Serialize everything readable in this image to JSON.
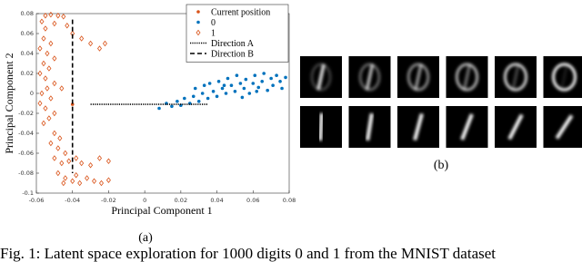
{
  "chart_data": {
    "type": "scatter",
    "xlabel": "Principal Component 1",
    "ylabel": "Principal Component 2",
    "xlim": [
      -0.06,
      0.08
    ],
    "ylim": [
      -0.1,
      0.08
    ],
    "xticks": [
      -0.06,
      -0.04,
      -0.02,
      0,
      0.02,
      0.04,
      0.06,
      0.08
    ],
    "yticks": [
      -0.1,
      -0.08,
      -0.06,
      -0.04,
      -0.02,
      0,
      0.02,
      0.04,
      0.06,
      0.08
    ],
    "legend": "upper right",
    "series": [
      {
        "name": "Current position",
        "color": "#d95319",
        "marker": "dot",
        "x": [
          -0.04
        ],
        "values": [
          -0.011
        ]
      },
      {
        "name": "0",
        "color": "#0072bd",
        "marker": "dot",
        "x": [
          0.008,
          0.012,
          0.015,
          0.018,
          0.02,
          0.022,
          0.025,
          0.027,
          0.028,
          0.03,
          0.032,
          0.033,
          0.035,
          0.036,
          0.038,
          0.04,
          0.041,
          0.043,
          0.045,
          0.046,
          0.048,
          0.05,
          0.051,
          0.053,
          0.055,
          0.056,
          0.058,
          0.06,
          0.061,
          0.063,
          0.065,
          0.066,
          0.068,
          0.07,
          0.071,
          0.073,
          0.075,
          0.076,
          0.078,
          0.062,
          0.054,
          0.044
        ],
        "values": [
          -0.015,
          -0.01,
          -0.013,
          -0.008,
          -0.012,
          -0.005,
          -0.01,
          -0.003,
          0.005,
          -0.008,
          0.0,
          0.008,
          -0.005,
          0.01,
          0.002,
          -0.003,
          0.012,
          0.005,
          0.0,
          0.015,
          0.008,
          0.002,
          0.018,
          0.01,
          0.005,
          0.014,
          0.0,
          0.01,
          0.018,
          0.006,
          0.012,
          0.02,
          0.003,
          0.015,
          0.008,
          0.018,
          0.012,
          0.005,
          0.016,
          0.002,
          -0.004,
          0.008
        ]
      },
      {
        "name": "1",
        "color": "#d95319",
        "marker": "diamond",
        "x": [
          -0.055,
          -0.052,
          -0.048,
          -0.045,
          -0.057,
          -0.05,
          -0.043,
          -0.055,
          -0.04,
          -0.035,
          -0.03,
          -0.025,
          -0.022,
          -0.056,
          -0.052,
          -0.058,
          -0.054,
          -0.05,
          -0.056,
          -0.053,
          -0.058,
          -0.055,
          -0.05,
          -0.054,
          -0.057,
          -0.052,
          -0.055,
          -0.05,
          -0.053,
          -0.056,
          -0.05,
          -0.047,
          -0.052,
          -0.048,
          -0.044,
          -0.05,
          -0.046,
          -0.042,
          -0.038,
          -0.035,
          -0.03,
          -0.025,
          -0.02,
          -0.048,
          -0.044,
          -0.04,
          -0.036,
          -0.032,
          -0.028,
          -0.024,
          -0.02,
          -0.045,
          -0.038,
          -0.046,
          -0.058
        ],
        "values": [
          0.078,
          0.079,
          0.078,
          0.077,
          0.072,
          0.07,
          0.068,
          0.065,
          0.06,
          0.055,
          0.05,
          0.045,
          0.05,
          0.055,
          0.05,
          0.045,
          0.04,
          0.035,
          0.03,
          0.025,
          0.02,
          0.015,
          0.01,
          0.005,
          0.0,
          -0.005,
          -0.015,
          -0.02,
          -0.025,
          -0.03,
          -0.04,
          -0.045,
          -0.05,
          -0.055,
          -0.06,
          -0.065,
          -0.07,
          -0.068,
          -0.065,
          -0.07,
          -0.072,
          -0.065,
          -0.068,
          -0.08,
          -0.085,
          -0.088,
          -0.09,
          -0.085,
          -0.088,
          -0.09,
          -0.087,
          -0.09,
          -0.082,
          0.005,
          -0.01
        ]
      },
      {
        "name": "Direction A",
        "color": "#000000",
        "marker": "dotted",
        "x": [
          -0.03,
          0.035
        ],
        "values": [
          -0.011,
          -0.011
        ]
      },
      {
        "name": "Direction B",
        "color": "#000000",
        "marker": "dashed",
        "x": [
          -0.04,
          -0.04
        ],
        "values": [
          0.074,
          -0.08
        ]
      }
    ]
  },
  "panels": {
    "a": "(a)",
    "b": "(b)"
  },
  "caption": "Fig. 1: Latent space exploration for 1000 digits 0 and 1 from the MNIST dataset"
}
